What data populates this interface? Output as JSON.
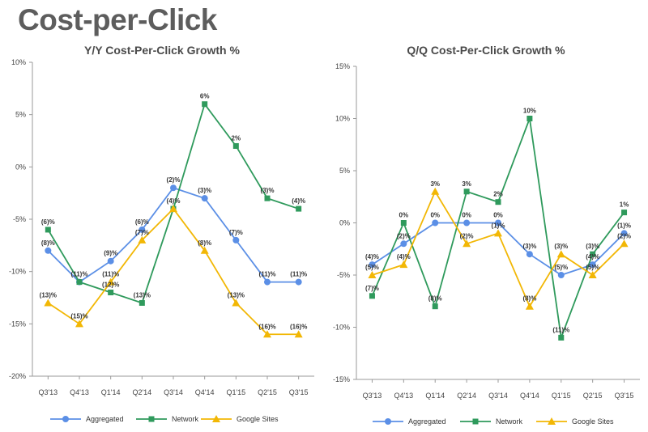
{
  "page": {
    "title": "Cost-per-Click"
  },
  "colors": {
    "Aggregated": "#5b8fe6",
    "Network": "#2f9a5c",
    "Google Sites": "#f2b705",
    "axis": "#9a9a9a"
  },
  "chart_data": [
    {
      "type": "line",
      "title": "Y/Y Cost-Per-Click Growth %",
      "xlabel": "",
      "ylabel": "",
      "categories": [
        "Q3'13",
        "Q4'13",
        "Q1'14",
        "Q2'14",
        "Q3'14",
        "Q4'14",
        "Q1'15",
        "Q2'15",
        "Q3'15"
      ],
      "ylim": [
        -20,
        10
      ],
      "yticks": [
        10,
        5,
        0,
        -5,
        -10,
        -15,
        -20
      ],
      "ytick_labels": [
        "10%",
        "5%",
        "0%",
        "-5%",
        "-10%",
        "-15%",
        "-20%"
      ],
      "grid": false,
      "legend_position": "bottom",
      "series": [
        {
          "name": "Aggregated",
          "marker": "circle",
          "values": [
            -8,
            -11,
            -9,
            -6,
            -2,
            -3,
            -7,
            -11,
            -11
          ],
          "labels": [
            "(8)%",
            "(11)%",
            "(9)%",
            "(6)%",
            "(2)%",
            "(3)%",
            "(7)%",
            "(11)%",
            "(11)%"
          ]
        },
        {
          "name": "Network",
          "marker": "square",
          "values": [
            -6,
            -11,
            -12,
            -13,
            -4,
            6,
            2,
            -3,
            -4
          ],
          "labels": [
            "(6)%",
            "",
            "(12)%",
            "(13)%",
            "(4)%",
            "6%",
            "2%",
            "(3)%",
            "(4)%"
          ]
        },
        {
          "name": "Google Sites",
          "marker": "triangle",
          "values": [
            -13,
            -15,
            -11,
            -7,
            -4,
            -8,
            -13,
            -16,
            -16
          ],
          "labels": [
            "(13)%",
            "(15)%",
            "(11)%",
            "(7)%",
            "",
            "(8)%",
            "(13)%",
            "(16)%",
            "(16)%"
          ]
        }
      ]
    },
    {
      "type": "line",
      "title": "Q/Q Cost-Per-Click Growth %",
      "xlabel": "",
      "ylabel": "",
      "categories": [
        "Q3'13",
        "Q4'13",
        "Q1'14",
        "Q2'14",
        "Q3'14",
        "Q4'14",
        "Q1'15",
        "Q2'15",
        "Q3'15"
      ],
      "ylim": [
        -15,
        15
      ],
      "yticks": [
        15,
        10,
        5,
        0,
        -5,
        -10,
        -15
      ],
      "ytick_labels": [
        "15%",
        "10%",
        "5%",
        "0%",
        "-5%",
        "-10%",
        "-15%"
      ],
      "grid": false,
      "legend_position": "bottom",
      "series": [
        {
          "name": "Aggregated",
          "marker": "circle",
          "values": [
            -4,
            -2,
            0,
            0,
            0,
            -3,
            -5,
            -4,
            -1
          ],
          "labels": [
            "(4)%",
            "(2)%",
            "0%",
            "0%",
            "0%",
            "(3)%",
            "(5)%",
            "(4)%",
            "(1)%"
          ]
        },
        {
          "name": "Network",
          "marker": "square",
          "values": [
            -7,
            0,
            -8,
            3,
            2,
            10,
            -11,
            -3,
            1
          ],
          "labels": [
            "(7)%",
            "0%",
            "(8)%",
            "3%",
            "2%",
            "10%",
            "(11)%",
            "(3)%",
            "1%"
          ]
        },
        {
          "name": "Google Sites",
          "marker": "triangle",
          "values": [
            -5,
            -4,
            3,
            -2,
            -1,
            -8,
            -3,
            -5,
            -2
          ],
          "labels": [
            "(5)%",
            "(4)%",
            "3%",
            "(2)%",
            "(1)%",
            "(8)%",
            "(3)%",
            "(5)%",
            "(2)%"
          ]
        }
      ]
    }
  ]
}
